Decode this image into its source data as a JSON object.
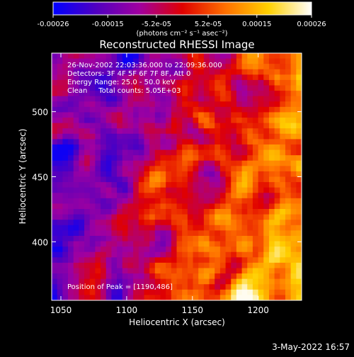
{
  "chart_data": {
    "type": "heatmap",
    "title": "Reconstructed RHESSI Image",
    "xlabel": "Heliocentric X (arcsec)",
    "ylabel": "Heliocentric Y (arcsec)",
    "xlim": [
      1043,
      1233
    ],
    "ylim": [
      355,
      545
    ],
    "xticks": [
      1050,
      1100,
      1150,
      1200
    ],
    "yticks": [
      400,
      450,
      500
    ],
    "colorbar": {
      "colormap": [
        "#0000ff",
        "#5000c0",
        "#a000a0",
        "#e00000",
        "#ff7000",
        "#ffd000",
        "#ffffff"
      ],
      "range": [
        -0.00026,
        0.00026
      ],
      "tick_labels": [
        "-0.00026",
        "-0.00015",
        "-5.2e-05",
        "5.2e-05",
        "0.00015",
        "0.00026"
      ],
      "tick_values": [
        -0.00026,
        -0.00015,
        -5.2e-05,
        5.2e-05,
        0.00015,
        0.00026
      ],
      "unit_label": "(photons cm⁻² s⁻¹ asec⁻²)"
    },
    "annotations": [
      "26-Nov-2002 22:03:36.000 to 22:09:36.000",
      "Detectors: 3F 4F 5F 6F 7F 8F, Att 0",
      "Energy Range: 25.0 - 50.0 keV",
      "Clean     Total counts: 5.05E+03"
    ],
    "peak_text": "Position of Peak = [1190,486]",
    "peak": {
      "x": 1190,
      "y": 486
    }
  },
  "footer_date": "3-May-2022 16:57"
}
